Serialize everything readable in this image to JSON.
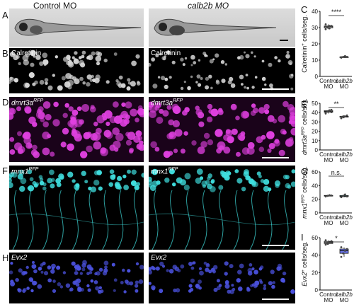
{
  "column_titles": [
    "Control MO",
    "calb2b MO"
  ],
  "panel_letters": [
    "A",
    "B",
    "C",
    "D",
    "E",
    "F",
    "G",
    "H",
    "I"
  ],
  "image_labels": {
    "B": "Calretinin",
    "D": "dmrt3a",
    "D_sup": "RFP",
    "F": "mnx1",
    "F_sup": "RFP",
    "H": "Evx2"
  },
  "colors": {
    "calretinin": "#d8d8d8",
    "dmrt3a": "#e040e0",
    "mnx1": "#40e0e0",
    "evx2": "#4b52e0",
    "control_box": "#cccccc",
    "calb2b_c": "#e6e6e6",
    "calb2b_e": "#e090e0",
    "calb2b_g": "#6ad7dd",
    "calb2b_i": "#6671df"
  },
  "chart_data": [
    {
      "panel": "C",
      "type": "box",
      "ylabel": "Calretinin",
      "ylabel_sup": "+",
      "ylabel_tail": " cells/seg.",
      "categories": [
        "Control MO",
        "calb2b MO"
      ],
      "yticks": [
        0,
        10,
        20,
        30,
        40
      ],
      "ylim": [
        0,
        40
      ],
      "series": [
        {
          "values": [
            29,
            30,
            31,
            31,
            32,
            30.5,
            29.5
          ]
        },
        {
          "values": [
            11.5,
            12,
            12.5,
            12,
            11.8
          ]
        }
      ],
      "significance": "****"
    },
    {
      "panel": "E",
      "type": "box",
      "ylabel": "dmrt3a",
      "ylabel_sup": "RFP",
      "ylabel_tail": " cells/seg.",
      "categories": [
        "Control MO",
        "calb2b MO"
      ],
      "yticks": [
        0,
        10,
        20,
        30,
        40,
        50
      ],
      "ylim": [
        0,
        50
      ],
      "series": [
        {
          "values": [
            40,
            41,
            42,
            43,
            39,
            41.5,
            42.5,
            40.5
          ]
        },
        {
          "values": [
            34,
            35,
            36,
            37,
            35.5,
            36
          ]
        }
      ],
      "significance": "**"
    },
    {
      "panel": "G",
      "type": "box",
      "ylabel": "mnx1",
      "ylabel_sup": "RFP",
      "ylabel_tail": " cells/seg.",
      "categories": [
        "Control MO",
        "calb2b MO"
      ],
      "yticks": [
        0,
        20,
        40,
        60
      ],
      "ylim": [
        0,
        60
      ],
      "series": [
        {
          "values": [
            24,
            25,
            26,
            25.5
          ]
        },
        {
          "values": [
            23,
            25,
            27,
            24
          ]
        }
      ],
      "significance": "n.s."
    },
    {
      "panel": "I",
      "type": "box",
      "ylabel": "Evx2",
      "ylabel_sup": "+",
      "ylabel_tail": " cells/seg.",
      "categories": [
        "Control MO",
        "calb2b MO"
      ],
      "yticks": [
        0,
        20,
        40,
        60
      ],
      "ylim": [
        0,
        60
      ],
      "series": [
        {
          "values": [
            52,
            54,
            55,
            56,
            57,
            53
          ]
        },
        {
          "values": [
            38,
            42,
            45,
            47,
            49
          ]
        }
      ],
      "significance": "*"
    }
  ]
}
